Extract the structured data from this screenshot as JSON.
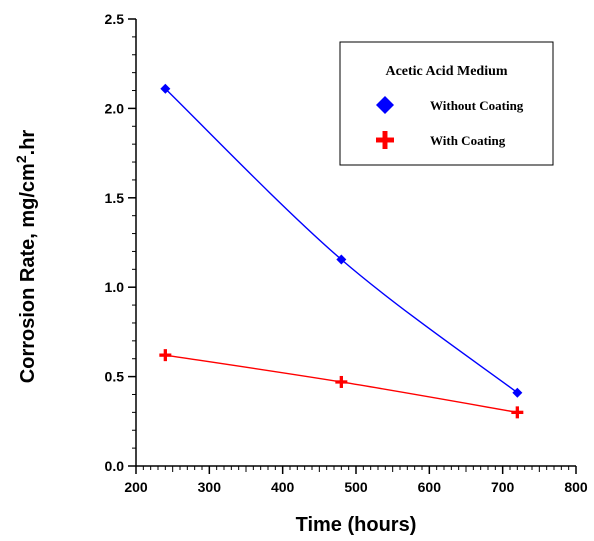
{
  "chart_data": {
    "type": "line",
    "xlabel": "Time (hours)",
    "ylabel": "Corrosion Rate, mg/cm",
    "ylabel_sup": "2",
    "ylabel_suffix": ".hr",
    "xlim": [
      200,
      800
    ],
    "ylim": [
      0.0,
      2.5
    ],
    "x_ticks": [
      200,
      300,
      400,
      500,
      600,
      700,
      800
    ],
    "x_tick_labels": [
      "200",
      "300",
      "400",
      "500",
      "600",
      "700",
      "800"
    ],
    "y_ticks": [
      0.0,
      0.5,
      1.0,
      1.5,
      2.0,
      2.5
    ],
    "y_tick_labels": [
      "0.0",
      "0.5",
      "1.0",
      "1.5",
      "2.0",
      "2.5"
    ],
    "grid": false,
    "legend": {
      "title": "Acetic Acid Medium",
      "placement": "top-right"
    },
    "series": [
      {
        "name": "Without Coating",
        "marker": "diamond",
        "color": "#0000ff",
        "x": [
          240,
          480,
          720
        ],
        "y": [
          2.11,
          1.155,
          0.41
        ]
      },
      {
        "name": "With Coating",
        "marker": "plus",
        "color": "#ff0000",
        "x": [
          240,
          480,
          720
        ],
        "y": [
          0.62,
          0.47,
          0.3
        ]
      }
    ]
  }
}
